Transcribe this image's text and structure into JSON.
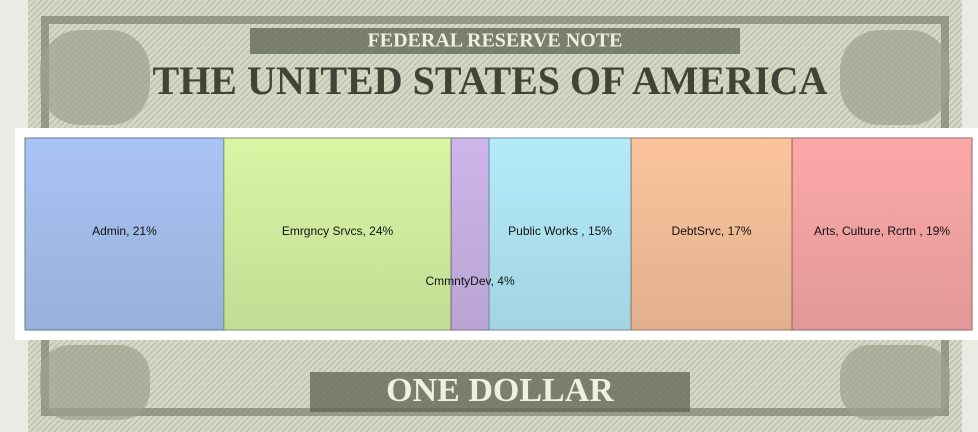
{
  "background": {
    "texts": [
      "FEDERAL RESERVE NOTE",
      "THE UNITED STATES OF AMERICA",
      "ONE DOLLAR"
    ]
  },
  "chart_data": {
    "type": "stacked_bar",
    "orientation": "horizontal",
    "values": [
      21,
      24,
      4,
      15,
      17,
      19
    ],
    "value_labels": [
      "Admin, 21%",
      "Emrgncy Srvcs, 24%",
      "CmmntyDev, 4%",
      "Public Works , 15%",
      "DebtSrvc, 17%",
      "Arts, Culture, Rcrtn , 19%"
    ],
    "colors": [
      "#a9c4f4",
      "#d8f6a4",
      "#cdb6ea",
      "#b4ebfb",
      "#fbc49d",
      "#fba9a8"
    ],
    "xlim": [
      0,
      100
    ]
  }
}
